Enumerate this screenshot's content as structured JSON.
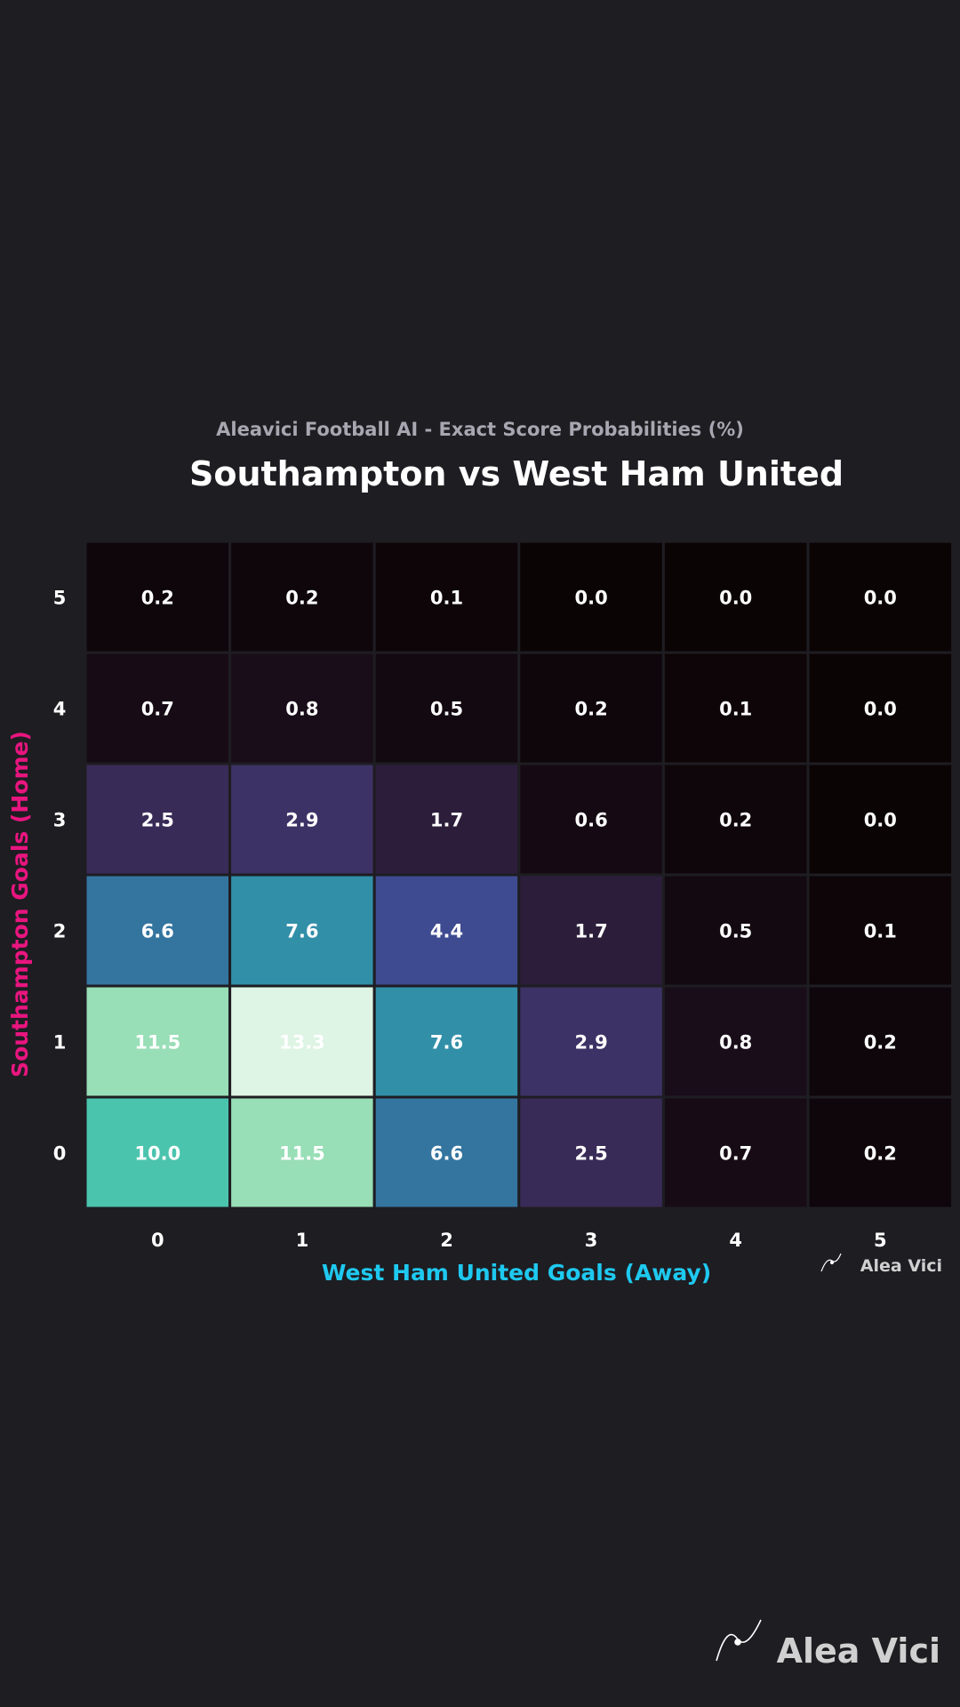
{
  "chart_data": {
    "type": "heatmap",
    "subtitle": "Aleavici Football AI - Exact Score Probabilities (%)",
    "title": "Southampton vs West Ham United",
    "xlabel": "West Ham United Goals (Away)",
    "ylabel": "Southampton Goals (Home)",
    "x_categories": [
      "0",
      "1",
      "2",
      "3",
      "4",
      "5"
    ],
    "y_categories": [
      "5",
      "4",
      "3",
      "2",
      "1",
      "0"
    ],
    "values": [
      [
        "0.2",
        "0.2",
        "0.1",
        "0.0",
        "0.0",
        "0.0"
      ],
      [
        "0.7",
        "0.8",
        "0.5",
        "0.2",
        "0.1",
        "0.0"
      ],
      [
        "2.5",
        "2.9",
        "1.7",
        "0.6",
        "0.2",
        "0.0"
      ],
      [
        "6.6",
        "7.6",
        "4.4",
        "1.7",
        "0.5",
        "0.1"
      ],
      [
        "11.5",
        "13.3",
        "7.6",
        "2.9",
        "0.8",
        "0.2"
      ],
      [
        "10.0",
        "11.5",
        "6.6",
        "2.5",
        "0.7",
        "0.2"
      ]
    ],
    "colorscale": "mako",
    "vmin": 0,
    "vmax": 13.3,
    "colors": {
      "background": "#1e1d22",
      "title": "#ffffff",
      "subtitle": "#a8a6b0",
      "xlabel": "#1ec9f0",
      "ylabel": "#e8157f"
    }
  },
  "watermark_small": "Alea Vici",
  "watermark_large": "Alea Vici"
}
